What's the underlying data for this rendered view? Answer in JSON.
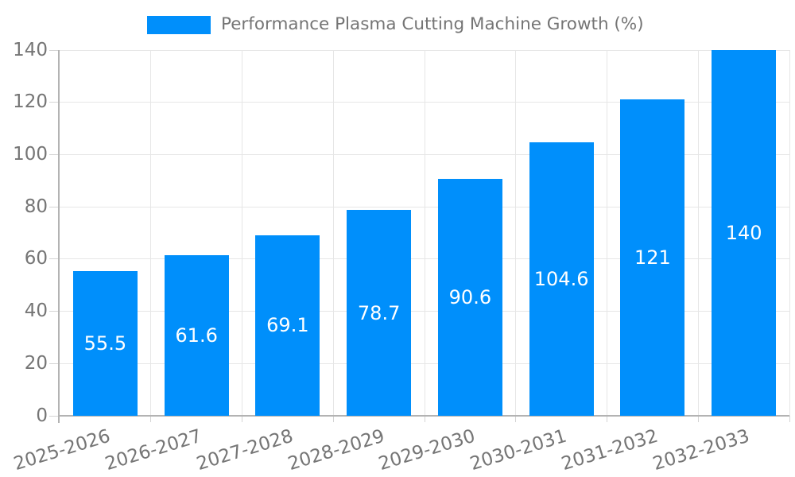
{
  "legend": {
    "label": "Performance Plasma Cutting Machine Growth (%)",
    "swatch_color": "#008ffb"
  },
  "chart_data": {
    "type": "bar",
    "title": "Performance Plasma Cutting Machine Growth (%)",
    "categories": [
      "2025-2026",
      "2026-2027",
      "2027-2028",
      "2028-2029",
      "2029-2030",
      "2030-2031",
      "2031-2032",
      "2032-2033"
    ],
    "values": [
      55.5,
      61.6,
      69.1,
      78.7,
      90.6,
      104.6,
      121,
      140
    ],
    "value_labels": [
      "55.5",
      "61.6",
      "69.1",
      "78.7",
      "90.6",
      "104.6",
      "121",
      "140"
    ],
    "xlabel": "",
    "ylabel": "",
    "ylim": [
      0,
      140
    ],
    "yticks": [
      0,
      20,
      40,
      60,
      80,
      100,
      120,
      140
    ],
    "grid": true,
    "legend_position": "top",
    "bar_color": "#008ffb",
    "value_label_color": "#ffffff",
    "axis_text_color": "#757575",
    "gridline_color": "#e6e6e6",
    "axis_line_color": "#b3b3b3"
  }
}
